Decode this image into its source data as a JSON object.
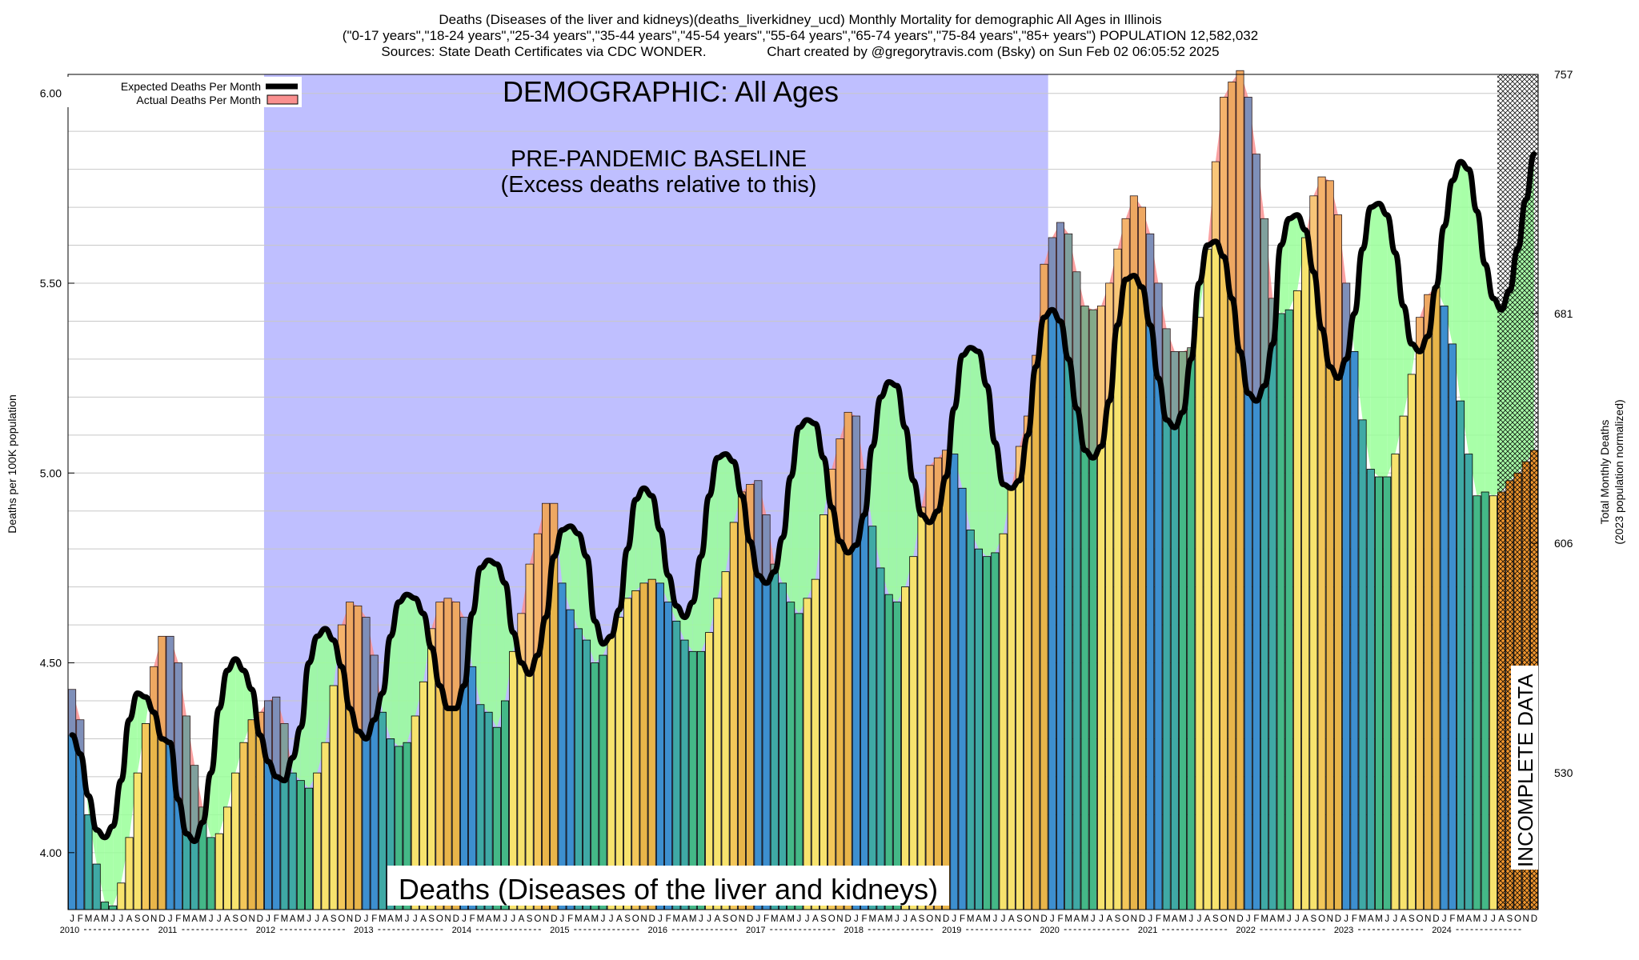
{
  "header": {
    "title_line1": "Deaths (Diseases of the liver and kidneys)(deaths_liverkidney_ucd) Monthly Mortality for demographic All Ages in Illinois",
    "title_line2": "(\"0-17 years\",\"18-24 years\",\"25-34 years\",\"35-44 years\",\"45-54 years\",\"55-64 years\",\"65-74 years\",\"75-84 years\",\"85+ years\") POPULATION 12,582,032",
    "title_line3": "Sources: State Death Certificates via CDC WONDER.                Chart created by @gregorytravis.com (Bsky) on Sun Feb 02 06:05:52 2025"
  },
  "annotations": {
    "demographic": "DEMOGRAPHIC: All Ages",
    "baseline_line1": "PRE-PANDEMIC BASELINE",
    "baseline_line2": "(Excess deaths relative to this)",
    "bottom_label": "Deaths (Diseases of the liver and kidneys)",
    "incomplete": "INCOMPLETE DATA"
  },
  "colors": {
    "baseline_band": "#bfbfff",
    "excess": "#fa9090",
    "deficit": "#99ff99",
    "expected_line": "#000000",
    "bar_edge": "#000000",
    "palette": [
      "#3d8fcf",
      "#3fa9a5",
      "#44b887",
      "#e8b54a",
      "#f3c75a",
      "#f7e36e",
      "#f0962f"
    ]
  },
  "chart_data": {
    "type": "bar",
    "title": "Deaths (Diseases of the liver and kidneys)(deaths_liverkidney_ucd) Monthly Mortality for demographic All Ages in Illinois",
    "ylabel": "Deaths per 100K population",
    "y2label_line1": "Total Monthly Deaths",
    "y2label_line2": "(2023 population normalized)",
    "ylim": [
      3.85,
      6.05
    ],
    "yticks": [
      "4.00",
      "4.50",
      "5.00",
      "5.50",
      "6.00"
    ],
    "y2ticks": [
      {
        "value": 4.21,
        "label": "530"
      },
      {
        "value": 4.815,
        "label": "606"
      },
      {
        "value": 5.42,
        "label": "681"
      },
      {
        "value": 6.05,
        "label": "757"
      }
    ],
    "month_letters": [
      "J",
      "F",
      "M",
      "A",
      "M",
      "J",
      "J",
      "A",
      "S",
      "O",
      "N",
      "D"
    ],
    "years": [
      "2010",
      "2011",
      "2012",
      "2013",
      "2014",
      "2015",
      "2016",
      "2017",
      "2018",
      "2019",
      "2020",
      "2021",
      "2022",
      "2023",
      "2024"
    ],
    "baseline_months": [
      24,
      119
    ],
    "incomplete_from_month": 175,
    "legend": {
      "position": "top-left",
      "entries": [
        "Expected Deaths Per Month",
        "Actual Deaths Per Month"
      ]
    },
    "grid": true,
    "series": [
      {
        "name": "Actual Deaths Per Month",
        "values": [
          4.43,
          4.35,
          4.1,
          3.97,
          3.87,
          3.86,
          3.92,
          4.04,
          4.21,
          4.34,
          4.49,
          4.57,
          4.57,
          4.5,
          4.36,
          4.23,
          4.12,
          4.04,
          4.05,
          4.12,
          4.21,
          4.29,
          4.35,
          4.37,
          4.4,
          4.41,
          4.34,
          4.21,
          4.19,
          4.17,
          4.21,
          4.29,
          4.44,
          4.6,
          4.66,
          4.65,
          4.62,
          4.52,
          4.37,
          4.3,
          4.28,
          4.29,
          4.36,
          4.45,
          4.59,
          4.66,
          4.67,
          4.66,
          4.62,
          4.49,
          4.39,
          4.37,
          4.33,
          4.4,
          4.53,
          4.63,
          4.76,
          4.84,
          4.92,
          4.92,
          4.71,
          4.64,
          4.59,
          4.56,
          4.5,
          4.52,
          4.57,
          4.62,
          4.67,
          4.69,
          4.71,
          4.72,
          4.71,
          4.66,
          4.61,
          4.56,
          4.53,
          4.53,
          4.58,
          4.67,
          4.74,
          4.87,
          4.95,
          4.97,
          4.98,
          4.89,
          4.76,
          4.71,
          4.66,
          4.63,
          4.67,
          4.72,
          4.89,
          5.01,
          5.09,
          5.16,
          5.15,
          5.01,
          4.86,
          4.75,
          4.68,
          4.66,
          4.7,
          4.78,
          4.91,
          5.02,
          5.04,
          5.06,
          5.05,
          4.96,
          4.85,
          4.8,
          4.78,
          4.79,
          4.84,
          4.96,
          5.07,
          5.15,
          5.31,
          5.55,
          5.62,
          5.66,
          5.63,
          5.53,
          5.44,
          5.43,
          5.44,
          5.5,
          5.59,
          5.67,
          5.73,
          5.7,
          5.63,
          5.5,
          5.38,
          5.32,
          5.32,
          5.33,
          5.41,
          5.59,
          5.82,
          5.99,
          6.03,
          6.06,
          5.99,
          5.84,
          5.67,
          5.46,
          5.42,
          5.43,
          5.48,
          5.62,
          5.73,
          5.78,
          5.77,
          5.68,
          5.5,
          5.32,
          5.14,
          5.01,
          4.99,
          4.99,
          5.05,
          5.15,
          5.26,
          5.41,
          5.47,
          5.49,
          5.44,
          5.34,
          5.19,
          5.05,
          4.94,
          4.95,
          4.94,
          4.95,
          4.98,
          5.0,
          5.03,
          5.06
        ]
      },
      {
        "name": "Expected Deaths Per Month",
        "values": [
          4.31,
          4.26,
          4.15,
          4.06,
          4.04,
          4.07,
          4.19,
          4.35,
          4.42,
          4.41,
          4.37,
          4.3,
          4.29,
          4.14,
          4.05,
          4.03,
          4.08,
          4.21,
          4.38,
          4.48,
          4.51,
          4.48,
          4.43,
          4.31,
          4.24,
          4.2,
          4.19,
          4.25,
          4.33,
          4.5,
          4.57,
          4.59,
          4.56,
          4.49,
          4.38,
          4.32,
          4.3,
          4.35,
          4.42,
          4.57,
          4.66,
          4.68,
          4.67,
          4.63,
          4.54,
          4.44,
          4.38,
          4.38,
          4.44,
          4.63,
          4.75,
          4.77,
          4.76,
          4.71,
          4.58,
          4.5,
          4.47,
          4.52,
          4.62,
          4.78,
          4.85,
          4.86,
          4.84,
          4.78,
          4.61,
          4.55,
          4.57,
          4.64,
          4.8,
          4.93,
          4.96,
          4.94,
          4.85,
          4.73,
          4.65,
          4.62,
          4.66,
          4.78,
          4.94,
          5.04,
          5.05,
          5.03,
          4.94,
          4.82,
          4.73,
          4.71,
          4.74,
          4.83,
          4.99,
          5.12,
          5.14,
          5.13,
          5.04,
          4.91,
          4.82,
          4.79,
          4.81,
          4.89,
          5.07,
          5.2,
          5.24,
          5.23,
          5.12,
          4.98,
          4.89,
          4.87,
          4.9,
          4.99,
          5.17,
          5.31,
          5.33,
          5.32,
          5.23,
          5.08,
          4.97,
          4.96,
          4.98,
          5.1,
          5.28,
          5.41,
          5.43,
          5.4,
          5.3,
          5.17,
          5.06,
          5.04,
          5.07,
          5.19,
          5.39,
          5.51,
          5.52,
          5.49,
          5.39,
          5.25,
          5.14,
          5.12,
          5.16,
          5.3,
          5.5,
          5.6,
          5.61,
          5.57,
          5.46,
          5.32,
          5.21,
          5.19,
          5.23,
          5.34,
          5.6,
          5.67,
          5.68,
          5.64,
          5.53,
          5.38,
          5.28,
          5.25,
          5.3,
          5.42,
          5.59,
          5.7,
          5.71,
          5.68,
          5.58,
          5.44,
          5.34,
          5.32,
          5.36,
          5.49,
          5.65,
          5.77,
          5.82,
          5.8,
          5.69,
          5.55,
          5.46,
          5.43,
          5.48,
          5.59,
          5.72,
          5.84
        ]
      }
    ]
  }
}
